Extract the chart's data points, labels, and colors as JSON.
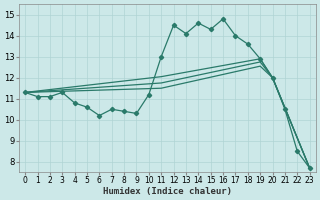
{
  "xlabel": "Humidex (Indice chaleur)",
  "xlim": [
    -0.5,
    23.5
  ],
  "ylim": [
    7.5,
    15.5
  ],
  "yticks": [
    8,
    9,
    10,
    11,
    12,
    13,
    14,
    15
  ],
  "xticks": [
    0,
    1,
    2,
    3,
    4,
    5,
    6,
    7,
    8,
    9,
    10,
    11,
    12,
    13,
    14,
    15,
    16,
    17,
    18,
    19,
    20,
    21,
    22,
    23
  ],
  "bg_color": "#cce8e8",
  "grid_color": "#b0d4d4",
  "line_color": "#2a7a6a",
  "line1_x": [
    0,
    1,
    2,
    3,
    4,
    5,
    6,
    7,
    8,
    9,
    10,
    11,
    12,
    13,
    14,
    15,
    16,
    17,
    18,
    19,
    20,
    21,
    22,
    23
  ],
  "line1_y": [
    11.3,
    11.1,
    11.1,
    11.3,
    10.8,
    10.6,
    10.2,
    10.5,
    10.4,
    10.3,
    11.2,
    13.0,
    14.5,
    14.1,
    14.6,
    14.3,
    14.8,
    14.0,
    13.6,
    12.9,
    12.0,
    10.5,
    8.5,
    7.7
  ],
  "line2_x": [
    0,
    11,
    19,
    20,
    23
  ],
  "line2_y": [
    11.3,
    12.05,
    12.9,
    12.0,
    7.7
  ],
  "line3_x": [
    0,
    11,
    19,
    20,
    23
  ],
  "line3_y": [
    11.3,
    11.75,
    12.75,
    12.0,
    7.7
  ],
  "line4_x": [
    0,
    11,
    19,
    20,
    23
  ],
  "line4_y": [
    11.3,
    11.5,
    12.55,
    12.0,
    7.7
  ]
}
